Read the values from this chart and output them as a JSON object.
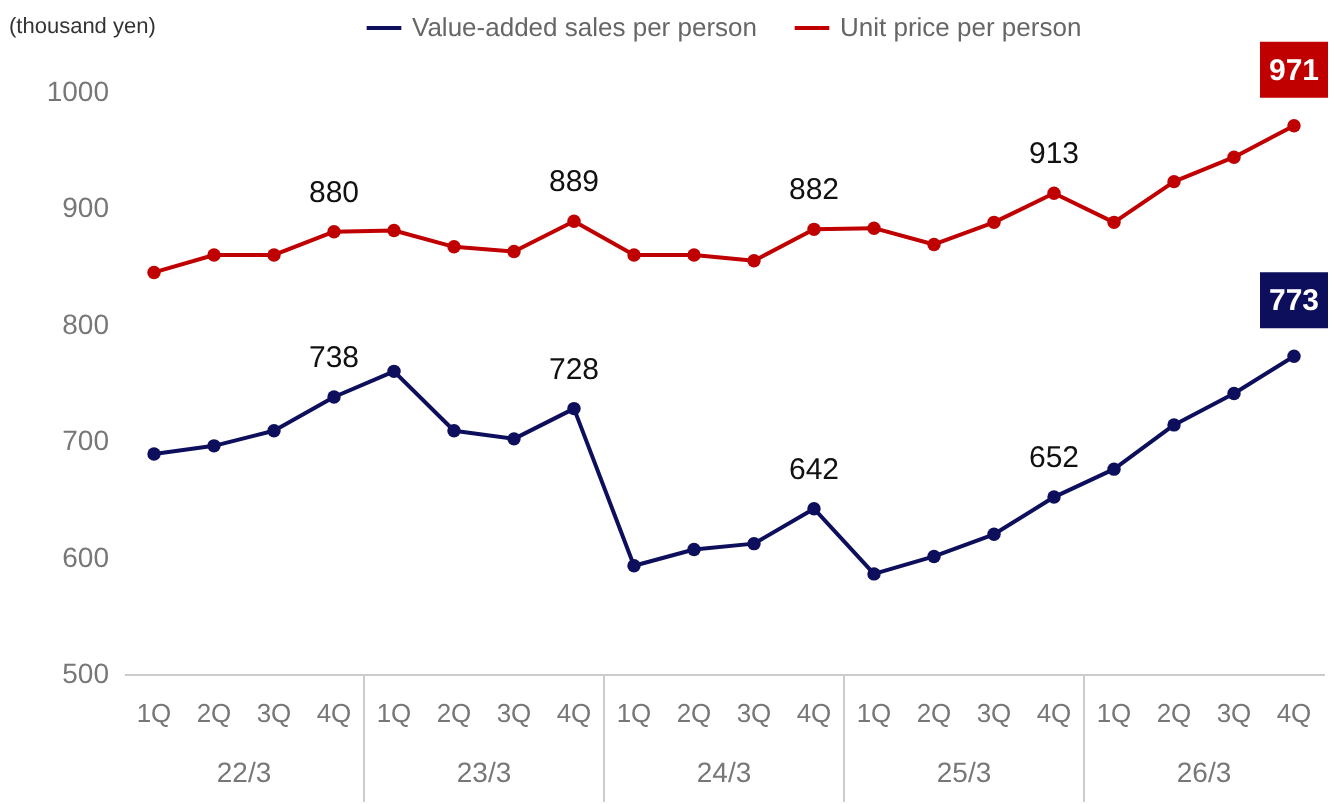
{
  "chart_data": {
    "type": "line",
    "ylabel": "(thousand yen)",
    "categories": [
      "1Q",
      "2Q",
      "3Q",
      "4Q",
      "1Q",
      "2Q",
      "3Q",
      "4Q",
      "1Q",
      "2Q",
      "3Q",
      "4Q",
      "1Q",
      "2Q",
      "3Q",
      "4Q",
      "1Q",
      "2Q",
      "3Q",
      "4Q"
    ],
    "annotations": [
      "22/3",
      "23/3",
      "24/3",
      "25/3",
      "26/3"
    ],
    "series": [
      {
        "name": "Value-added sales per person",
        "color": "#0d0f5c",
        "values": [
          689,
          696,
          709,
          738,
          760,
          709,
          702,
          728,
          593,
          607,
          612,
          642,
          586,
          601,
          620,
          652,
          676,
          714,
          741,
          773
        ],
        "value_labels": [
          null,
          null,
          null,
          "738",
          null,
          null,
          null,
          "728",
          null,
          null,
          null,
          "642",
          null,
          null,
          null,
          "652",
          null,
          null,
          null,
          "773"
        ]
      },
      {
        "name": "Unit price per person",
        "color": "#c00000",
        "values": [
          845,
          860,
          860,
          880,
          881,
          867,
          863,
          889,
          860,
          860,
          855,
          882,
          883,
          869,
          888,
          913,
          888,
          923,
          944,
          971
        ],
        "value_labels": [
          null,
          null,
          null,
          "880",
          null,
          null,
          null,
          "889",
          null,
          null,
          null,
          "882",
          null,
          null,
          null,
          "913",
          null,
          null,
          null,
          "971"
        ]
      }
    ],
    "ylim": [
      500,
      1000
    ],
    "yticks": [
      500,
      600,
      700,
      800,
      900,
      1000
    ],
    "grid": false,
    "legend": "top",
    "marker": "circle",
    "line_style": "solid"
  }
}
